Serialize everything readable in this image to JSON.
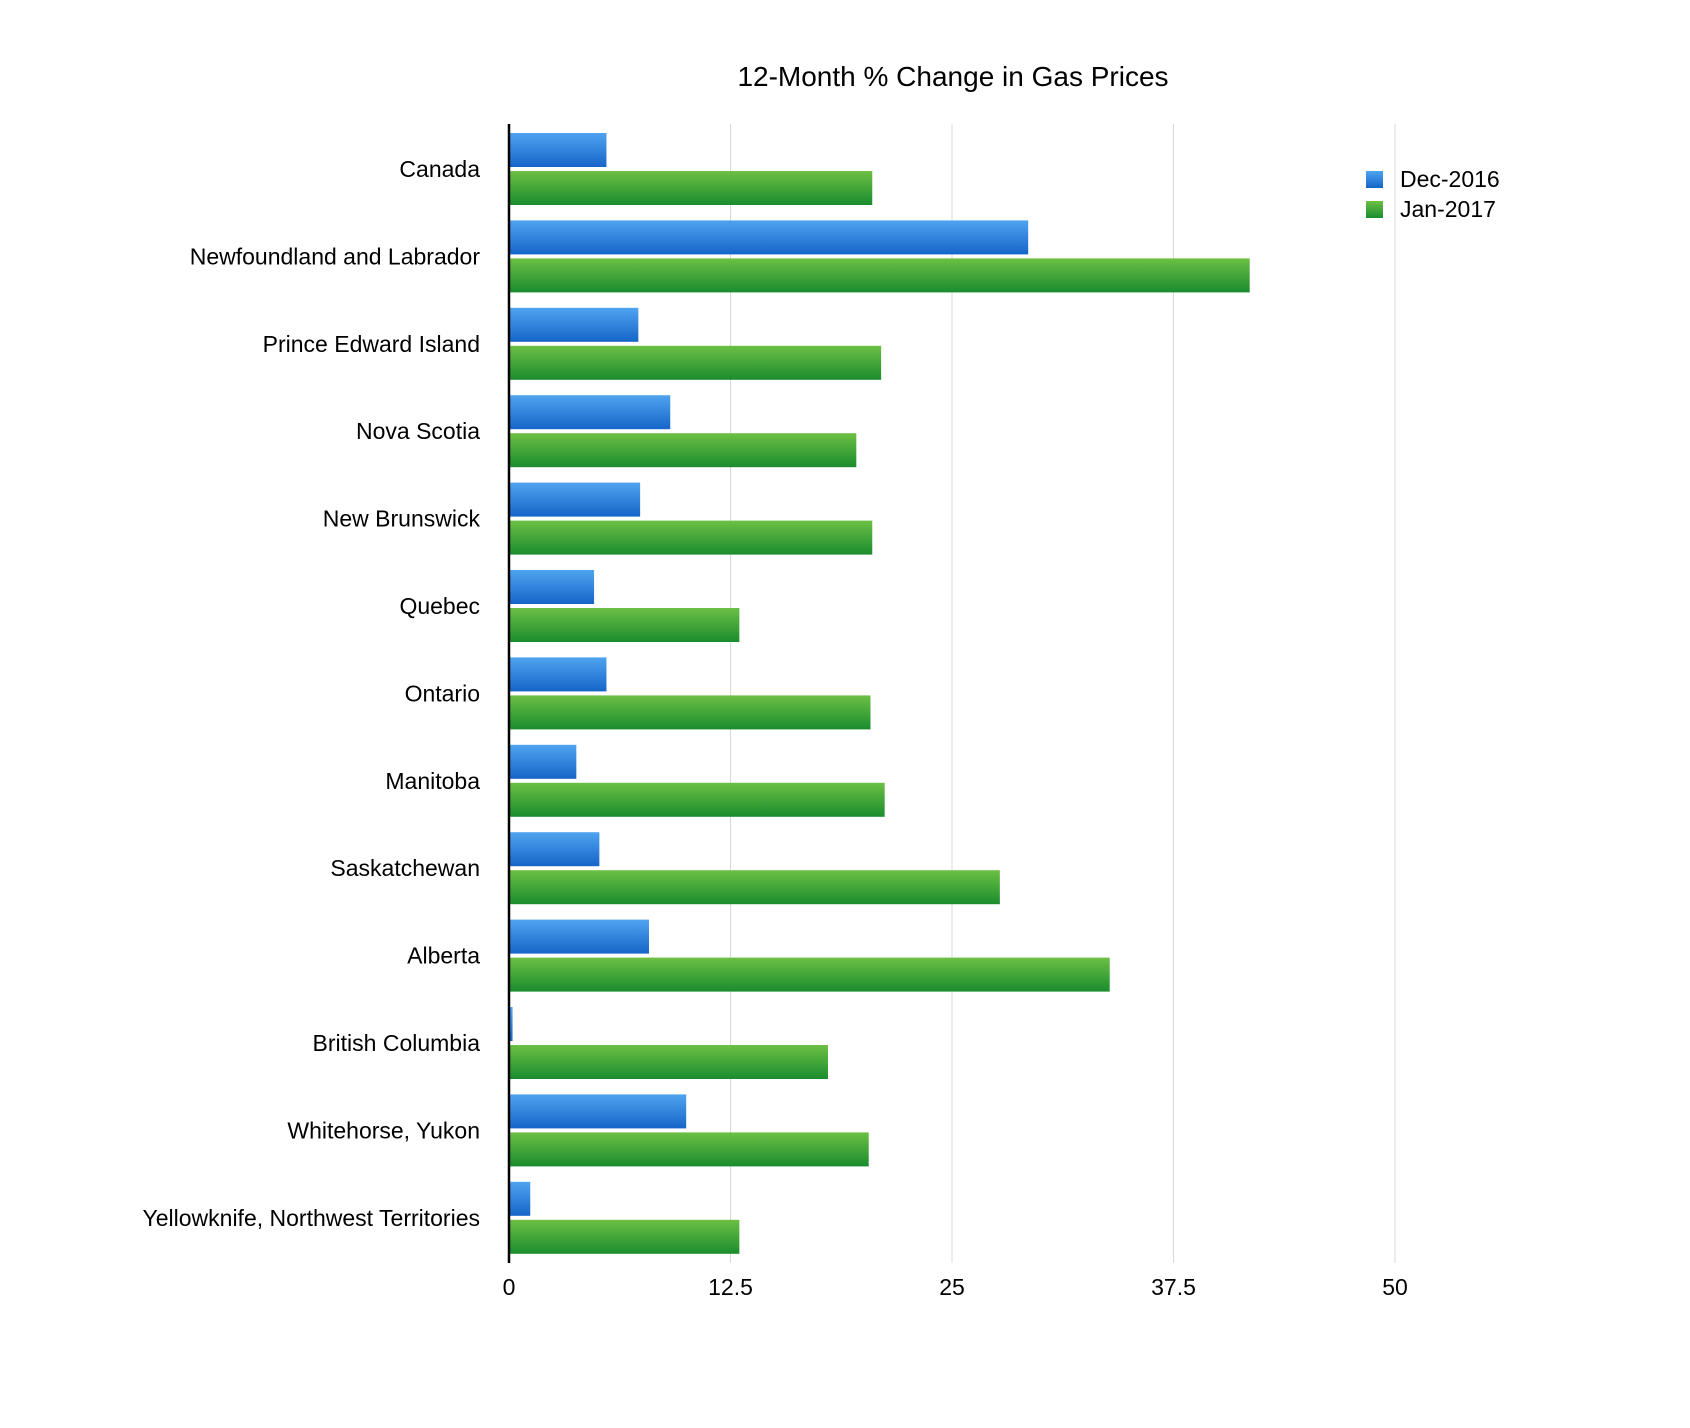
{
  "colors": {
    "series_1_top": "#4FA4F0",
    "series_1_bottom": "#1565C8",
    "series_2_top": "#6CC044",
    "series_2_bottom": "#1A8C2E",
    "gridline": "#D8D8D8",
    "axis": "#000000"
  },
  "chart_data": {
    "type": "bar",
    "orientation": "horizontal",
    "title": "12-Month % Change in Gas Prices",
    "xlabel": "",
    "ylabel": "",
    "xlim": [
      0,
      50
    ],
    "x_ticks": [
      "0",
      "12.5",
      "25",
      "37.5",
      "50"
    ],
    "x_tick_values": [
      0,
      12.5,
      25,
      37.5,
      50
    ],
    "grid": true,
    "legend_position": "top-right",
    "categories": [
      "Canada",
      "Newfoundland and Labrador",
      "Prince Edward Island",
      "Nova Scotia",
      "New Brunswick",
      "Quebec",
      "Ontario",
      "Manitoba",
      "Saskatchewan",
      "Alberta",
      "British Columbia",
      "Whitehorse, Yukon",
      "Yellowknife, Northwest Territories"
    ],
    "series": [
      {
        "name": "Dec-2016",
        "values": [
          5.5,
          29.3,
          7.3,
          9.1,
          7.4,
          4.8,
          5.5,
          3.8,
          5.1,
          7.9,
          0.2,
          10.0,
          1.2
        ]
      },
      {
        "name": "Jan-2017",
        "values": [
          20.5,
          41.8,
          21.0,
          19.6,
          20.5,
          13.0,
          20.4,
          21.2,
          27.7,
          33.9,
          18.0,
          20.3,
          13.0
        ]
      }
    ]
  }
}
